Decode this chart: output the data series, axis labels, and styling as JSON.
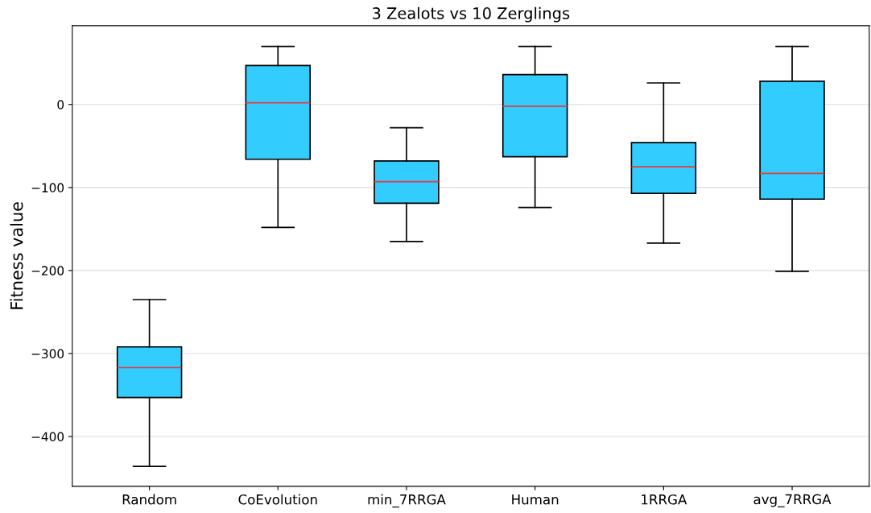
{
  "chart_data": {
    "type": "box",
    "title": "3 Zealots vs 10 Zerglings",
    "ylabel": "Fitness value",
    "categories": [
      "Random",
      "CoEvolution",
      "min_7RRGA",
      "Human",
      "1RRGA",
      "avg_7RRGA"
    ],
    "boxes": [
      {
        "low": -436,
        "q1": -353,
        "median": -317,
        "q3": -292,
        "high": -235
      },
      {
        "low": -148,
        "q1": -66,
        "median": 2,
        "q3": 47,
        "high": 70
      },
      {
        "low": -165,
        "q1": -119,
        "median": -93,
        "q3": -68,
        "high": -28
      },
      {
        "low": -124,
        "q1": -63,
        "median": -2,
        "q3": 36,
        "high": 70
      },
      {
        "low": -167,
        "q1": -107,
        "median": -75,
        "q3": -46,
        "high": 26
      },
      {
        "low": -201,
        "q1": -114,
        "median": -83,
        "q3": 28,
        "high": 70
      }
    ],
    "color": "#33ccff",
    "ylim": [
      -460,
      95
    ],
    "yticks": [
      {
        "value": -400,
        "label": "−400"
      },
      {
        "value": -300,
        "label": "−300"
      },
      {
        "value": -200,
        "label": "−200"
      },
      {
        "value": -100,
        "label": "−100"
      },
      0
    ],
    "grid": "y"
  }
}
